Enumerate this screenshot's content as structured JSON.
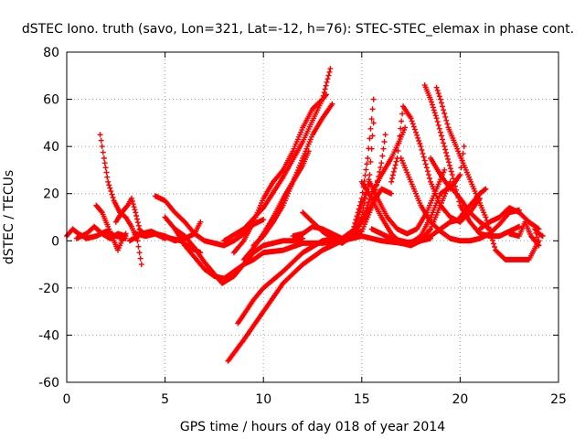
{
  "chart_data": {
    "type": "scatter",
    "title": "dSTEC Iono. truth (savo, Lon=321, Lat=-12, h=76): STEC-STEC_elemax in phase cont.",
    "xlabel": "GPS time / hours of day 018 of year 2014",
    "ylabel": "dSTEC  / TECUs",
    "xlim": [
      0,
      25
    ],
    "ylim": [
      -60,
      80
    ],
    "xticks": [
      "0",
      "5",
      "10",
      "15",
      "20",
      "25"
    ],
    "yticks": [
      "-60",
      "-40",
      "-20",
      "0",
      "20",
      "40",
      "60",
      "80"
    ],
    "grid": true,
    "marker": "+",
    "color": "#ff0000",
    "tracks": [
      [
        [
          0.0,
          2
        ],
        [
          0.3,
          5
        ],
        [
          0.6,
          3
        ],
        [
          1.0,
          1
        ],
        [
          1.5,
          2
        ],
        [
          2.0,
          4
        ],
        [
          2.5,
          2
        ],
        [
          3.0,
          1
        ]
      ],
      [
        [
          0.5,
          1
        ],
        [
          1.0,
          3
        ],
        [
          1.4,
          6
        ],
        [
          1.8,
          3
        ],
        [
          2.2,
          1
        ],
        [
          2.6,
          3
        ],
        [
          3.0,
          2
        ]
      ],
      [
        [
          1.5,
          15
        ],
        [
          1.8,
          12
        ],
        [
          2.1,
          6
        ],
        [
          2.4,
          0
        ],
        [
          2.6,
          -4
        ],
        [
          2.8,
          0
        ],
        [
          3.0,
          3
        ]
      ],
      [
        [
          1.7,
          45
        ],
        [
          1.9,
          35
        ],
        [
          2.1,
          25
        ],
        [
          2.4,
          17
        ],
        [
          2.7,
          12
        ],
        [
          3.0,
          10
        ],
        [
          3.3,
          6
        ],
        [
          3.6,
          0
        ],
        [
          3.8,
          -10
        ]
      ],
      [
        [
          2.5,
          8
        ],
        [
          2.8,
          12
        ],
        [
          3.1,
          15
        ],
        [
          3.3,
          18
        ],
        [
          3.5,
          12
        ],
        [
          3.7,
          5
        ],
        [
          4.0,
          2
        ],
        [
          4.5,
          3
        ],
        [
          5.0,
          1
        ]
      ],
      [
        [
          3.2,
          0
        ],
        [
          3.8,
          3
        ],
        [
          4.3,
          4
        ],
        [
          4.8,
          2
        ],
        [
          5.3,
          1
        ],
        [
          5.8,
          0
        ],
        [
          6.3,
          -3
        ],
        [
          6.8,
          -5
        ]
      ],
      [
        [
          3.5,
          3
        ],
        [
          4.0,
          2
        ],
        [
          4.5,
          3
        ],
        [
          5.0,
          2
        ],
        [
          5.5,
          0
        ],
        [
          6.0,
          1
        ],
        [
          6.5,
          3
        ],
        [
          6.8,
          8
        ]
      ],
      [
        [
          4.5,
          19
        ],
        [
          5.0,
          17
        ],
        [
          5.5,
          12
        ],
        [
          6.0,
          8
        ],
        [
          6.5,
          3
        ],
        [
          7.0,
          0
        ],
        [
          7.5,
          -1
        ],
        [
          8.0,
          -2
        ],
        [
          8.5,
          0
        ],
        [
          9.0,
          3
        ],
        [
          9.5,
          7
        ],
        [
          10.0,
          9
        ]
      ],
      [
        [
          5.0,
          10
        ],
        [
          5.5,
          5
        ],
        [
          6.0,
          -2
        ],
        [
          6.5,
          -7
        ],
        [
          7.0,
          -12
        ],
        [
          7.5,
          -15
        ],
        [
          8.0,
          -16
        ],
        [
          8.5,
          -13
        ],
        [
          9.0,
          -10
        ],
        [
          9.5,
          -8
        ],
        [
          10.0,
          -5
        ]
      ],
      [
        [
          5.5,
          5
        ],
        [
          6.0,
          2
        ],
        [
          6.5,
          -3
        ],
        [
          7.0,
          -9
        ],
        [
          7.5,
          -14
        ],
        [
          7.9,
          -18
        ],
        [
          8.5,
          -15
        ],
        [
          9.0,
          -10
        ],
        [
          9.5,
          -5
        ],
        [
          10.0,
          -2
        ],
        [
          10.5,
          -1
        ],
        [
          11.0,
          0
        ],
        [
          11.5,
          0
        ],
        [
          12.0,
          1
        ]
      ],
      [
        [
          8.0,
          0
        ],
        [
          9.0,
          5
        ],
        [
          10.0,
          14
        ],
        [
          11.0,
          27
        ],
        [
          12.0,
          42
        ],
        [
          13.0,
          60
        ],
        [
          13.4,
          73
        ]
      ],
      [
        [
          8.5,
          -5
        ],
        [
          9.0,
          0
        ],
        [
          9.5,
          8
        ],
        [
          10.0,
          18
        ],
        [
          10.5,
          25
        ],
        [
          11.0,
          30
        ],
        [
          11.5,
          38
        ],
        [
          12.0,
          48
        ],
        [
          12.5,
          56
        ],
        [
          13.0,
          60
        ],
        [
          13.2,
          62
        ]
      ],
      [
        [
          9.0,
          -8
        ],
        [
          9.5,
          -3
        ],
        [
          10.0,
          3
        ],
        [
          10.5,
          10
        ],
        [
          11.0,
          18
        ],
        [
          11.5,
          25
        ],
        [
          12.0,
          32
        ],
        [
          12.3,
          38
        ]
      ],
      [
        [
          9.5,
          -2
        ],
        [
          10.0,
          2
        ],
        [
          10.5,
          8
        ],
        [
          11.0,
          15
        ],
        [
          11.5,
          25
        ],
        [
          12.0,
          35
        ],
        [
          12.5,
          45
        ],
        [
          13.0,
          52
        ],
        [
          13.5,
          58
        ]
      ],
      [
        [
          8.2,
          -51
        ],
        [
          9.0,
          -42
        ],
        [
          10.0,
          -30
        ],
        [
          11.0,
          -18
        ],
        [
          12.0,
          -10
        ],
        [
          13.0,
          -4
        ],
        [
          14.0,
          0
        ],
        [
          15.0,
          2
        ],
        [
          16.0,
          0
        ],
        [
          17.0,
          -1
        ],
        [
          18.0,
          0
        ],
        [
          18.5,
          1
        ]
      ],
      [
        [
          8.7,
          -35
        ],
        [
          9.5,
          -25
        ],
        [
          10.0,
          -20
        ],
        [
          11.0,
          -13
        ],
        [
          12.0,
          -5
        ],
        [
          13.0,
          0
        ],
        [
          14.0,
          1
        ],
        [
          15.0,
          4
        ],
        [
          15.5,
          14
        ],
        [
          16.0,
          33
        ],
        [
          16.2,
          45
        ]
      ],
      [
        [
          10.0,
          -5
        ],
        [
          11.0,
          -4
        ],
        [
          12.0,
          -1
        ],
        [
          13.0,
          -1
        ],
        [
          14.0,
          0
        ],
        [
          14.5,
          3
        ],
        [
          15.0,
          18
        ],
        [
          15.3,
          35
        ],
        [
          15.6,
          60
        ]
      ],
      [
        [
          12.0,
          12
        ],
        [
          12.5,
          8
        ],
        [
          13.0,
          4
        ],
        [
          13.5,
          1
        ],
        [
          14.0,
          0
        ],
        [
          14.5,
          2
        ],
        [
          15.0,
          10
        ],
        [
          15.4,
          28
        ],
        [
          15.6,
          50
        ]
      ],
      [
        [
          11.5,
          2
        ],
        [
          12.0,
          3
        ],
        [
          12.5,
          6
        ],
        [
          13.0,
          5
        ],
        [
          13.5,
          3
        ],
        [
          14.0,
          1
        ],
        [
          14.5,
          4
        ],
        [
          15.0,
          8
        ],
        [
          15.5,
          15
        ],
        [
          16.0,
          22
        ],
        [
          16.5,
          20
        ]
      ],
      [
        [
          13.5,
          1
        ],
        [
          14.0,
          -1
        ],
        [
          14.5,
          2
        ],
        [
          15.0,
          8
        ],
        [
          15.5,
          20
        ],
        [
          16.0,
          28
        ],
        [
          16.5,
          35
        ],
        [
          17.0,
          44
        ],
        [
          17.2,
          48
        ]
      ],
      [
        [
          14.5,
          2
        ],
        [
          15.0,
          15
        ],
        [
          15.4,
          25
        ],
        [
          15.8,
          18
        ],
        [
          16.3,
          10
        ],
        [
          16.8,
          5
        ],
        [
          17.3,
          3
        ],
        [
          17.8,
          5
        ],
        [
          18.3,
          12
        ],
        [
          18.8,
          22
        ],
        [
          19.2,
          30
        ]
      ],
      [
        [
          15.0,
          25
        ],
        [
          15.5,
          18
        ],
        [
          16.0,
          10
        ],
        [
          16.5,
          3
        ],
        [
          17.0,
          -1
        ],
        [
          17.5,
          -2
        ],
        [
          18.0,
          0
        ],
        [
          18.5,
          5
        ],
        [
          19.0,
          15
        ],
        [
          19.5,
          25
        ]
      ],
      [
        [
          15.5,
          5
        ],
        [
          16.0,
          3
        ],
        [
          16.5,
          1
        ],
        [
          17.0,
          -1
        ],
        [
          17.5,
          -1
        ],
        [
          18.0,
          0
        ],
        [
          18.5,
          2
        ],
        [
          19.0,
          5
        ],
        [
          19.5,
          8
        ],
        [
          20.0,
          9
        ]
      ],
      [
        [
          16.5,
          1
        ],
        [
          17.0,
          0
        ],
        [
          17.5,
          -1
        ],
        [
          18.0,
          2
        ],
        [
          18.5,
          10
        ],
        [
          19.0,
          20
        ],
        [
          19.5,
          23
        ],
        [
          20.0,
          18
        ],
        [
          20.5,
          12
        ],
        [
          21.0,
          8
        ],
        [
          21.5,
          5
        ]
      ],
      [
        [
          16.5,
          25
        ],
        [
          16.8,
          35
        ],
        [
          17.1,
          57
        ],
        [
          17.5,
          52
        ],
        [
          18.0,
          40
        ],
        [
          18.5,
          25
        ],
        [
          19.0,
          15
        ],
        [
          19.5,
          10
        ],
        [
          20.0,
          8
        ],
        [
          20.5,
          12
        ],
        [
          21.0,
          18
        ]
      ],
      [
        [
          17.0,
          35
        ],
        [
          17.5,
          25
        ],
        [
          18.0,
          15
        ],
        [
          18.5,
          8
        ],
        [
          19.0,
          4
        ],
        [
          19.5,
          1
        ],
        [
          20.0,
          0
        ],
        [
          20.5,
          0
        ],
        [
          21.0,
          1
        ],
        [
          21.5,
          3
        ],
        [
          22.0,
          7
        ],
        [
          22.5,
          12
        ],
        [
          23.0,
          13
        ]
      ],
      [
        [
          18.2,
          66
        ],
        [
          18.5,
          60
        ],
        [
          18.8,
          52
        ],
        [
          19.2,
          40
        ],
        [
          19.6,
          28
        ],
        [
          20.0,
          15
        ],
        [
          20.5,
          8
        ],
        [
          21.0,
          3
        ],
        [
          21.5,
          2
        ],
        [
          22.0,
          2
        ],
        [
          22.5,
          4
        ],
        [
          23.0,
          6
        ]
      ],
      [
        [
          18.8,
          65
        ],
        [
          19.0,
          60
        ],
        [
          19.4,
          48
        ],
        [
          19.8,
          40
        ],
        [
          20.3,
          30
        ],
        [
          20.8,
          20
        ],
        [
          21.3,
          10
        ],
        [
          21.8,
          -4
        ],
        [
          22.3,
          -8
        ],
        [
          23.0,
          -8
        ],
        [
          23.5,
          -8
        ],
        [
          24.0,
          0
        ]
      ],
      [
        [
          18.5,
          35
        ],
        [
          19.0,
          28
        ],
        [
          19.5,
          22
        ],
        [
          20.0,
          28
        ],
        [
          20.2,
          40
        ]
      ],
      [
        [
          20.0,
          10
        ],
        [
          20.5,
          15
        ],
        [
          21.0,
          20
        ],
        [
          21.3,
          22
        ]
      ],
      [
        [
          21.0,
          5
        ],
        [
          21.5,
          8
        ],
        [
          22.0,
          10
        ],
        [
          22.5,
          14
        ],
        [
          23.0,
          12
        ],
        [
          23.5,
          8
        ],
        [
          24.0,
          5
        ]
      ],
      [
        [
          22.5,
          3
        ],
        [
          23.0,
          2
        ],
        [
          23.3,
          8
        ],
        [
          23.6,
          2
        ],
        [
          24.0,
          -2
        ],
        [
          23.8,
          5
        ],
        [
          24.0,
          3
        ],
        [
          24.2,
          2
        ]
      ]
    ]
  }
}
